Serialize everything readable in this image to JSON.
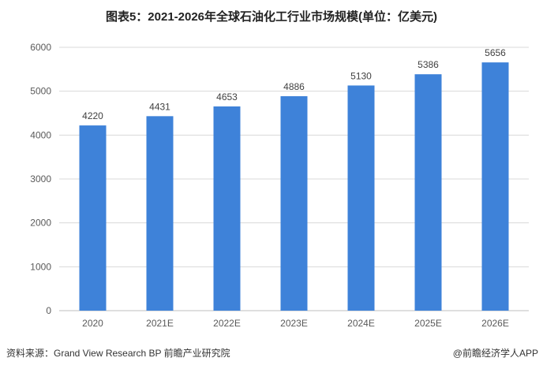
{
  "chart_data": {
    "type": "bar",
    "title": "图表5：2021-2026年全球石油化工行业市场规模(单位：亿美元)",
    "categories": [
      "2020",
      "2021E",
      "2022E",
      "2023E",
      "2024E",
      "2025E",
      "2026E"
    ],
    "values": [
      4220,
      4431,
      4653,
      4886,
      5130,
      5386,
      5656
    ],
    "ylim": [
      0,
      6000
    ],
    "yticks": [
      0,
      1000,
      2000,
      3000,
      4000,
      5000,
      6000
    ],
    "xlabel": "",
    "ylabel": "",
    "grid": true,
    "legend": "none",
    "bar_color": "#3e82d9",
    "grid_color": "#d9d9d9"
  },
  "footer": {
    "source": "资料来源：Grand View Research BP 前瞻产业研究院",
    "credit": "@前瞻经济学人APP"
  }
}
